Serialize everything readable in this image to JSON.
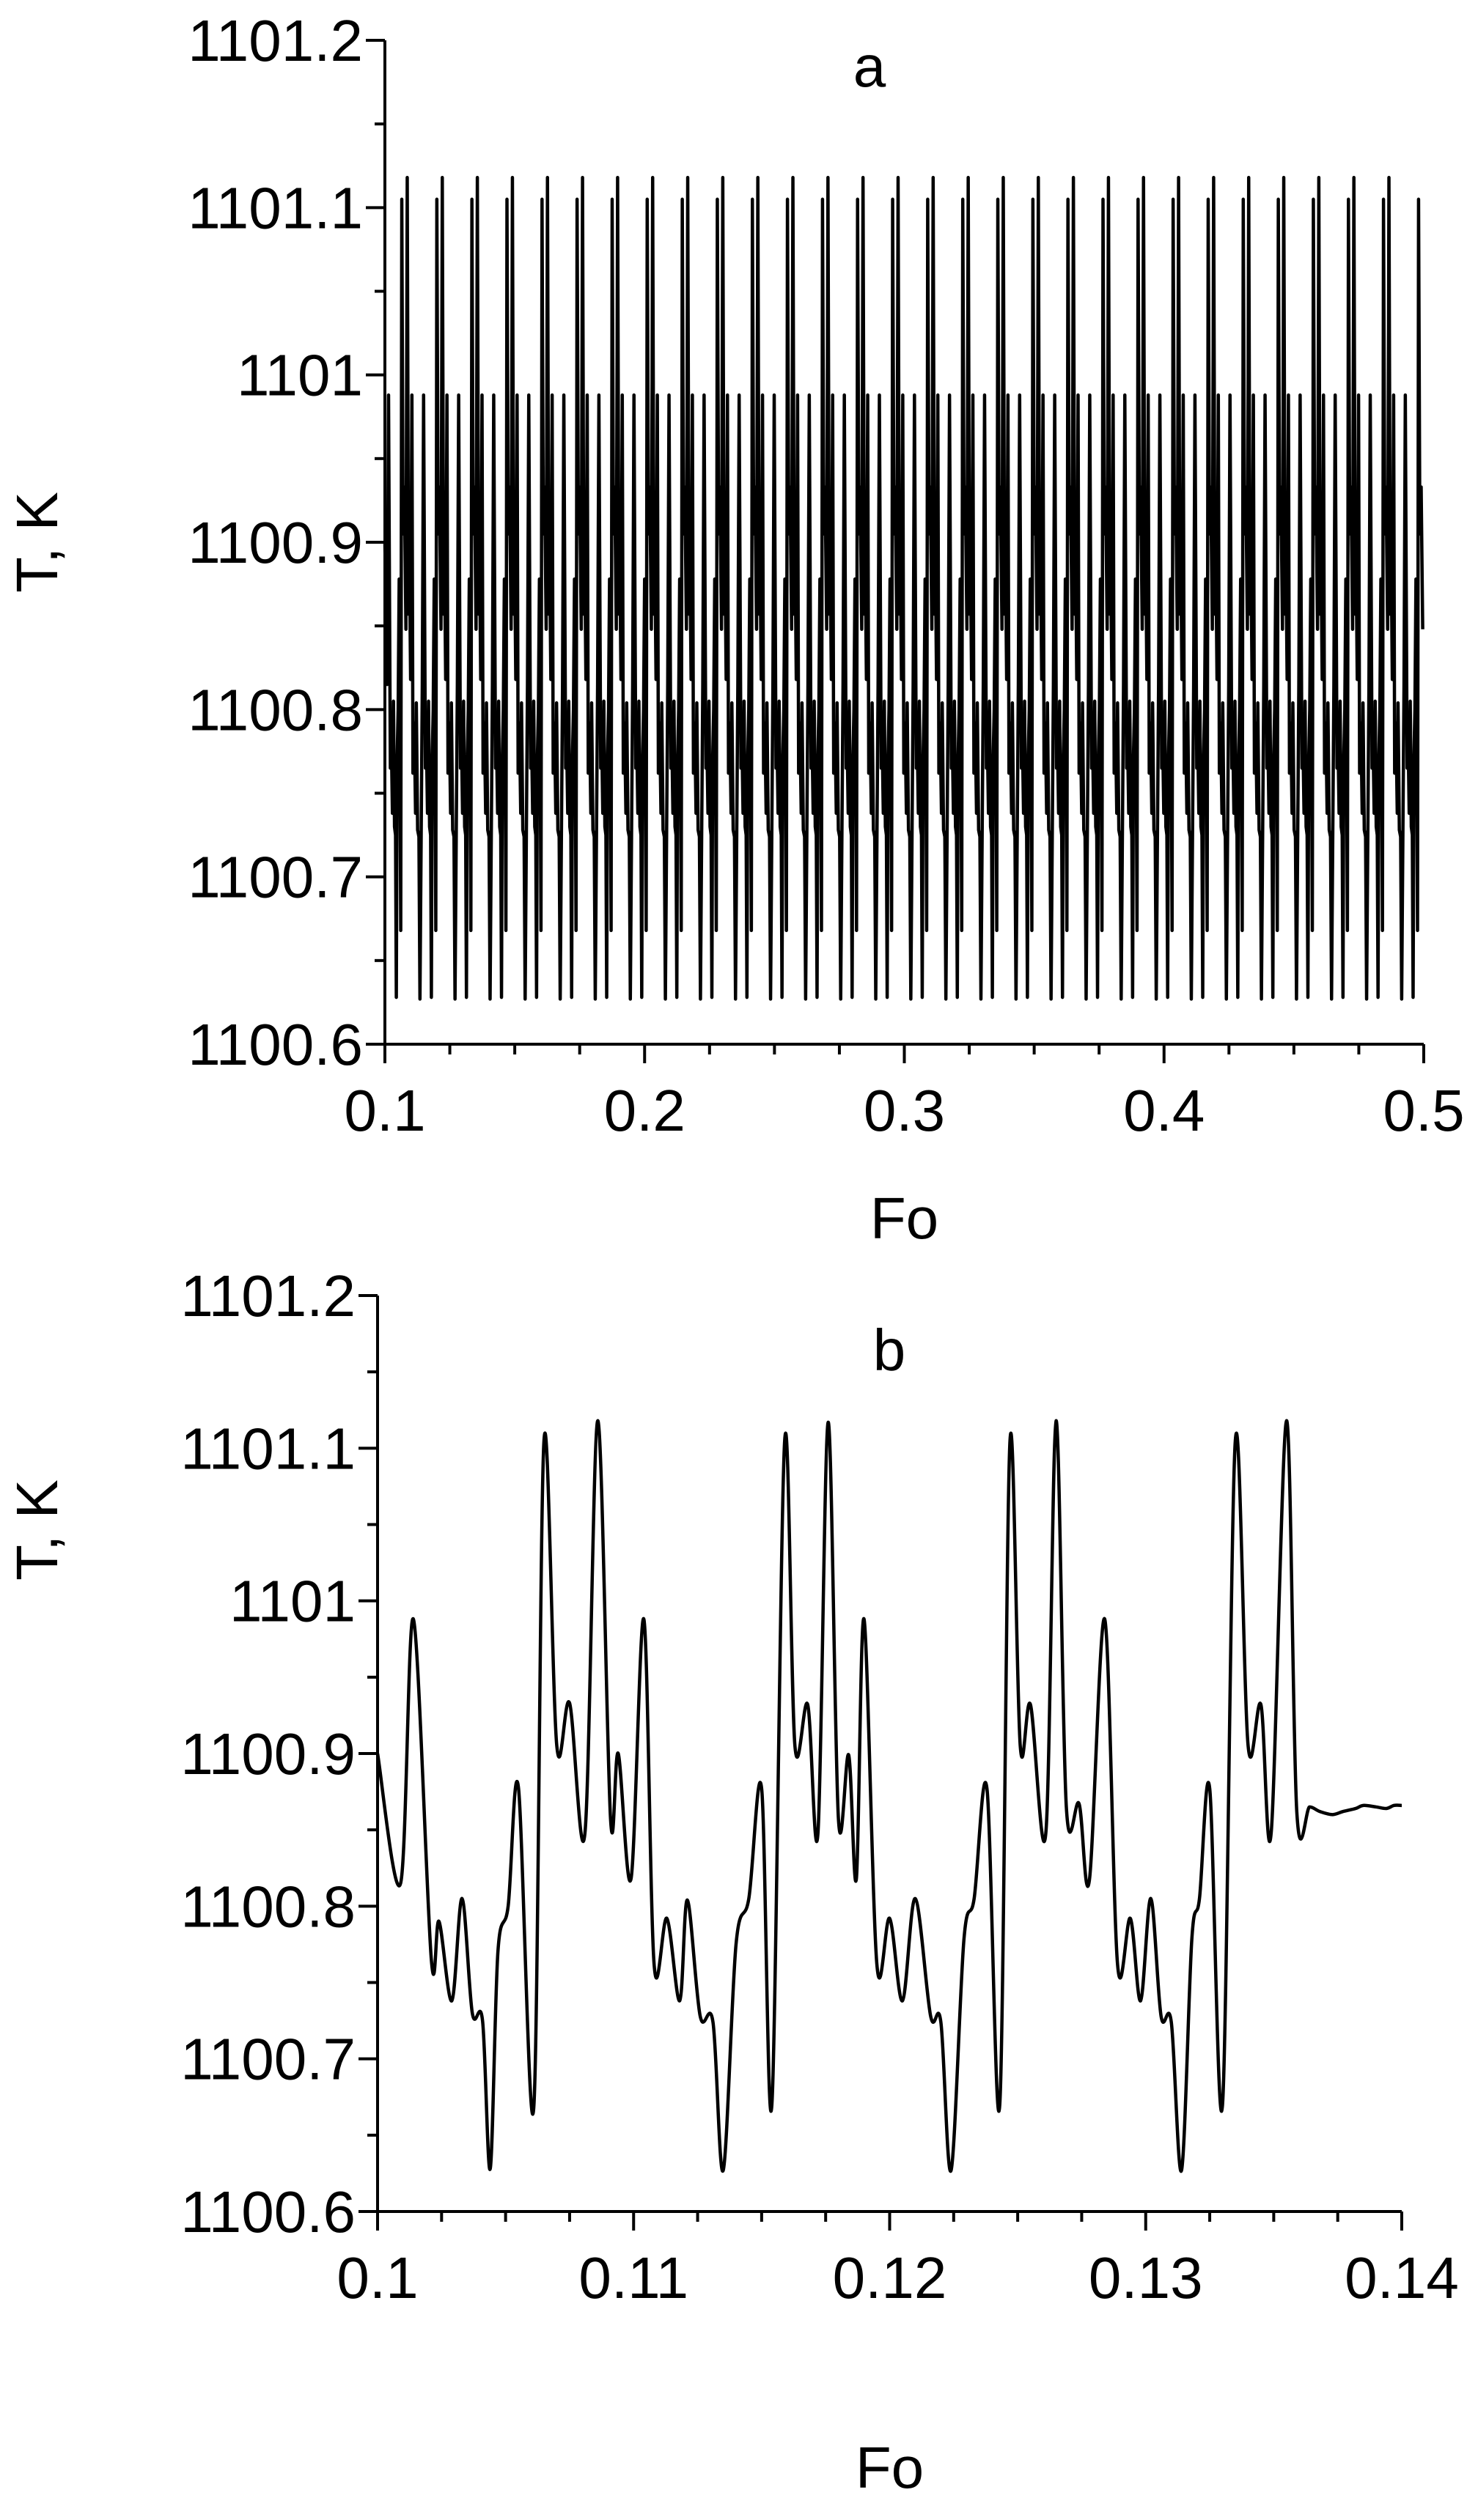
{
  "chart_data": [
    {
      "type": "line",
      "panel_label": "a",
      "xlabel": "Fo",
      "ylabel": "T, K",
      "xlim": [
        0.1,
        0.5
      ],
      "ylim": [
        1100.6,
        1101.2
      ],
      "xticks": [
        "0.1",
        "0.2",
        "0.3",
        "0.4",
        "0.5"
      ],
      "xtick_values": [
        0.1,
        0.2,
        0.3,
        0.4,
        0.5
      ],
      "yticks": [
        "1100.6",
        "1100.7",
        "1100.8",
        "1100.9",
        "1101",
        "1101.1",
        "1101.2"
      ],
      "ytick_values": [
        1100.6,
        1100.7,
        1100.8,
        1100.9,
        1101.0,
        1101.1,
        1101.2
      ],
      "grid": false,
      "line_color": "#000000",
      "series": [
        {
          "periodic_from_panel": "b",
          "x_start": 0.1,
          "x_end": 0.5,
          "min": 1100.625,
          "max": 1101.118
        }
      ]
    },
    {
      "type": "line",
      "panel_label": "b",
      "xlabel": "Fo",
      "ylabel": "T, K",
      "xlim": [
        0.1,
        0.14
      ],
      "ylim": [
        1100.6,
        1101.2
      ],
      "xticks": [
        "0.1",
        "0.11",
        "0.12",
        "0.13",
        "0.14"
      ],
      "xtick_values": [
        0.1,
        0.11,
        0.12,
        0.13,
        0.14
      ],
      "yticks": [
        "1100.6",
        "1100.7",
        "1100.8",
        "1100.9",
        "1101",
        "1101.1",
        "1101.2"
      ],
      "ytick_values": [
        1100.6,
        1100.7,
        1100.8,
        1100.9,
        1101.0,
        1101.1,
        1101.2
      ],
      "grid": false,
      "line_color": "#000000",
      "period": 0.0135,
      "series": [
        {
          "x": [
            0.1,
            0.1009,
            0.1014,
            0.1021,
            0.1024,
            0.1029,
            0.1033,
            0.1037,
            0.1041,
            0.1044,
            0.1047,
            0.1051,
            0.1055,
            0.1061,
            0.1065,
            0.107,
            0.1075,
            0.1081,
            0.1086,
            0.1091,
            0.1094,
            0.1099,
            0.1104,
            0.1108,
            0.1113,
            0.1118,
            0.1121,
            0.1126,
            0.1131,
            0.1135,
            0.114,
            0.1145,
            0.115,
            0.1154,
            0.1159,
            0.1163,
            0.1168,
            0.1172,
            0.1176,
            0.118,
            0.1184,
            0.1187,
            0.119,
            0.1195,
            0.12,
            0.1205,
            0.121,
            0.1216,
            0.122,
            0.1224,
            0.1229,
            0.1233,
            0.1238,
            0.1243,
            0.1247,
            0.1251,
            0.1255,
            0.1261,
            0.1265,
            0.1269,
            0.1274,
            0.1278,
            0.1284,
            0.1289,
            0.1294,
            0.1298,
            0.1302,
            0.1306,
            0.131,
            0.1314,
            0.1318,
            0.1321,
            0.1325,
            0.133,
            0.1335,
            0.134,
            0.1345,
            0.1349,
            0.1355,
            0.1359,
            0.1364,
            0.1368,
            0.1373,
            0.1377,
            0.1382,
            0.1385,
            0.139,
            0.1394,
            0.1397,
            0.14
          ],
          "y": [
            1100.9,
            1100.815,
            1100.988,
            1100.765,
            1100.79,
            1100.738,
            1100.805,
            1100.73,
            1100.725,
            1100.628,
            1100.77,
            1100.8,
            1100.878,
            1100.668,
            1101.105,
            1100.905,
            1100.933,
            1100.848,
            1101.118,
            1100.857,
            1100.9,
            1100.818,
            1100.988,
            1100.762,
            1100.792,
            1100.738,
            1100.804,
            1100.728,
            1100.724,
            1100.627,
            1100.775,
            1100.805,
            1100.877,
            1100.67,
            1101.105,
            1100.905,
            1100.932,
            1100.848,
            1101.117,
            1100.857,
            1100.899,
            1100.818,
            1100.988,
            1100.762,
            1100.792,
            1100.738,
            1100.805,
            1100.728,
            1100.724,
            1100.627,
            1100.778,
            1100.805,
            1100.877,
            1100.67,
            1101.105,
            1100.905,
            1100.932,
            1100.848,
            1101.118,
            1100.865,
            1100.867,
            1100.817,
            1100.988,
            1100.762,
            1100.792,
            1100.738,
            1100.805,
            1100.728,
            1100.724,
            1100.627,
            1100.778,
            1100.805,
            1100.877,
            1100.67,
            1101.105,
            1100.905,
            1100.932,
            1100.848,
            1101.118,
            1100.862,
            1100.865,
            1100.862,
            1100.86,
            1100.862,
            1100.864,
            1100.866,
            1100.865,
            1100.864,
            1100.866,
            1100.866
          ]
        }
      ]
    }
  ]
}
